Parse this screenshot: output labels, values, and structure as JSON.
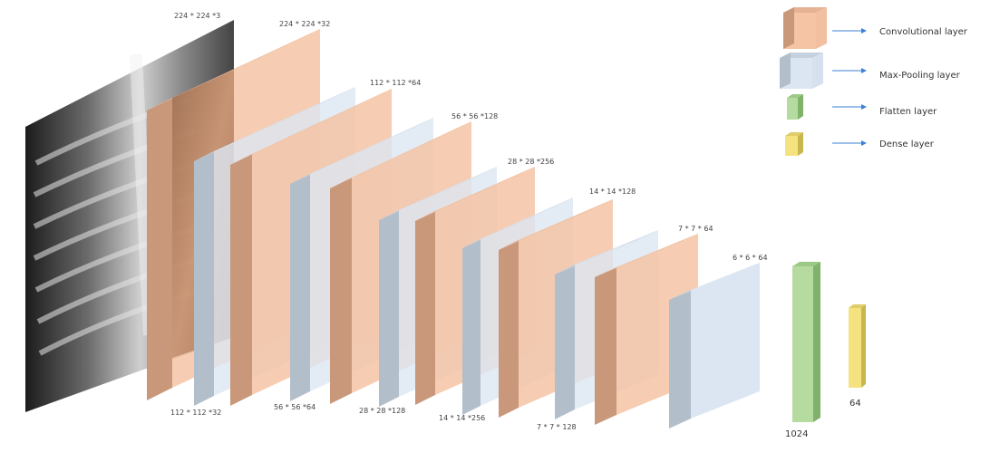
{
  "input_label": "224 * 224 *3",
  "layers": [
    {
      "type": "conv",
      "label": "224 * 224 *32"
    },
    {
      "type": "pool",
      "label": "112 * 112 *32"
    },
    {
      "type": "conv",
      "label": "112 * 112 *64"
    },
    {
      "type": "pool",
      "label": "56 * 56 *64"
    },
    {
      "type": "conv",
      "label": "56 * 56 *128"
    },
    {
      "type": "pool",
      "label": "28 * 28 *128"
    },
    {
      "type": "conv",
      "label": "28 * 28 *256"
    },
    {
      "type": "pool",
      "label": "14 * 14 *256"
    },
    {
      "type": "conv",
      "label": "14 * 14 *128"
    },
    {
      "type": "pool",
      "label": "7 * 7 * 128"
    },
    {
      "type": "conv",
      "label": "7 * 7 * 64"
    },
    {
      "type": "pool",
      "label": "6 * 6 * 64"
    }
  ],
  "flatten_label": "1024",
  "dense_label": "64",
  "legend": [
    {
      "type": "conv",
      "label": "Convolutional layer"
    },
    {
      "type": "pool",
      "label": "Max-Pooling layer"
    },
    {
      "type": "flatten",
      "label": "Flatten layer"
    },
    {
      "type": "dense",
      "label": "Dense layer"
    }
  ],
  "colors": {
    "conv_front": "#f4c4a4",
    "conv_side": "#c9987a",
    "conv_top": "#e6b294",
    "pool_front": "#dce6f3",
    "pool_side": "#b3becb",
    "pool_top": "#c6d1df",
    "flatten_front": "#b6dba0",
    "flatten_side": "#7fb26b",
    "dense_front": "#f4e27f",
    "dense_side": "#c8b74f",
    "arrow": "#3b82d6"
  }
}
